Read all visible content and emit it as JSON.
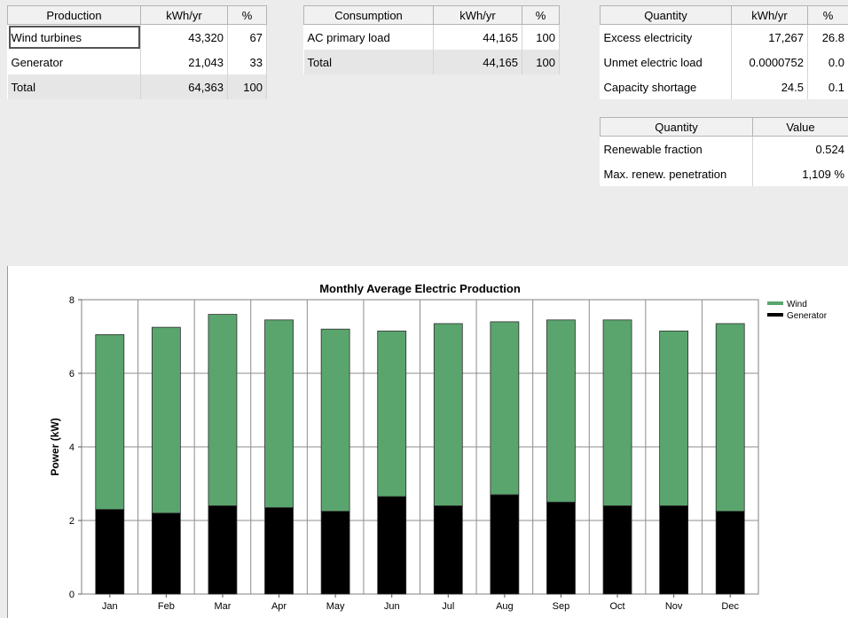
{
  "production": {
    "headers": [
      "Production",
      "kWh/yr",
      "%"
    ],
    "rows": [
      {
        "name": "Wind turbines",
        "kwh": "43,320",
        "pct": "67"
      },
      {
        "name": "Generator",
        "kwh": "21,043",
        "pct": "33"
      },
      {
        "name": "Total",
        "kwh": "64,363",
        "pct": "100"
      }
    ]
  },
  "consumption": {
    "headers": [
      "Consumption",
      "kWh/yr",
      "%"
    ],
    "rows": [
      {
        "name": "AC primary load",
        "kwh": "44,165",
        "pct": "100"
      },
      {
        "name": "Total",
        "kwh": "44,165",
        "pct": "100"
      }
    ]
  },
  "quantity": {
    "headers": [
      "Quantity",
      "kWh/yr",
      "%"
    ],
    "rows": [
      {
        "name": "Excess electricity",
        "kwh": "17,267",
        "pct": "26.8"
      },
      {
        "name": "Unmet electric load",
        "kwh": "0.0000752",
        "pct": "0.0"
      },
      {
        "name": "Capacity shortage",
        "kwh": "24.5",
        "pct": "0.1"
      }
    ]
  },
  "value_table": {
    "headers": [
      "Quantity",
      "Value"
    ],
    "rows": [
      {
        "name": "Renewable fraction",
        "value": "0.524"
      },
      {
        "name": "Max. renew. penetration",
        "value": "1,109 %"
      }
    ]
  },
  "chart_data": {
    "type": "bar",
    "stacked": true,
    "title": "Monthly Average Electric Production",
    "ylabel": "Power (kW)",
    "xlabel": "",
    "ylim": [
      0,
      8
    ],
    "yticks": [
      0,
      2,
      4,
      6,
      8
    ],
    "categories": [
      "Jan",
      "Feb",
      "Mar",
      "Apr",
      "May",
      "Jun",
      "Jul",
      "Aug",
      "Sep",
      "Oct",
      "Nov",
      "Dec"
    ],
    "series": [
      {
        "name": "Generator",
        "color": "#000000",
        "values": [
          2.3,
          2.2,
          2.4,
          2.35,
          2.25,
          2.65,
          2.4,
          2.7,
          2.5,
          2.4,
          2.4,
          2.25
        ]
      },
      {
        "name": "Wind",
        "color": "#5aa56e",
        "values": [
          4.75,
          5.05,
          5.2,
          5.1,
          4.95,
          4.5,
          4.95,
          4.7,
          4.95,
          5.05,
          4.75,
          5.1
        ]
      }
    ],
    "legend": [
      "Wind",
      "Generator"
    ],
    "legend_position": "top-right",
    "grid": true
  }
}
